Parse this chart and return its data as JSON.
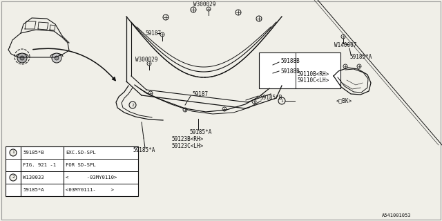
{
  "bg": "#f0efe8",
  "lc": "#111111",
  "diagram_id": "A541001053",
  "table_rows": [
    [
      "1",
      "59185*B",
      "EXC.SD-SPL"
    ],
    [
      "",
      "FIG. 921 -1",
      "FOR SD-SPL"
    ],
    [
      "2",
      "W130033",
      "<      -03MY0110>"
    ],
    [
      "",
      "59185*A",
      "<03MY0111-     >"
    ]
  ]
}
